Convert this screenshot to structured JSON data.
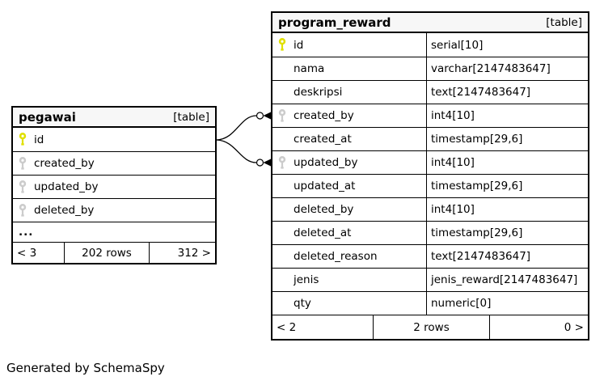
{
  "credit": "Generated by SchemaSpy",
  "colors": {
    "primary_key": "#e0e000",
    "foreign_key": "#cccccc",
    "border": "#000000",
    "header_bg": "#f7f7f7"
  },
  "tables": [
    {
      "name": "pegawai",
      "badge": "[table]",
      "columns": [
        {
          "name": "id",
          "key": "primary"
        },
        {
          "name": "created_by",
          "key": "foreign"
        },
        {
          "name": "updated_by",
          "key": "foreign"
        },
        {
          "name": "deleted_by",
          "key": "foreign"
        },
        {
          "name": "...",
          "key": "none"
        }
      ],
      "pager": {
        "prev": "< 3",
        "rows": "202 rows",
        "next": "312 >"
      }
    },
    {
      "name": "program_reward",
      "badge": "[table]",
      "columns": [
        {
          "name": "id",
          "type": "serial[10]",
          "key": "primary"
        },
        {
          "name": "nama",
          "type": "varchar[2147483647]",
          "key": "none"
        },
        {
          "name": "deskripsi",
          "type": "text[2147483647]",
          "key": "none"
        },
        {
          "name": "created_by",
          "type": "int4[10]",
          "key": "foreign"
        },
        {
          "name": "created_at",
          "type": "timestamp[29,6]",
          "key": "none"
        },
        {
          "name": "updated_by",
          "type": "int4[10]",
          "key": "foreign"
        },
        {
          "name": "updated_at",
          "type": "timestamp[29,6]",
          "key": "none"
        },
        {
          "name": "deleted_by",
          "type": "int4[10]",
          "key": "none"
        },
        {
          "name": "deleted_at",
          "type": "timestamp[29,6]",
          "key": "none"
        },
        {
          "name": "deleted_reason",
          "type": "text[2147483647]",
          "key": "none"
        },
        {
          "name": "jenis",
          "type": "jenis_reward[2147483647]",
          "key": "none"
        },
        {
          "name": "qty",
          "type": "numeric[0]",
          "key": "none"
        }
      ],
      "pager": {
        "prev": "< 2",
        "rows": "2 rows",
        "next": "0 >"
      }
    }
  ],
  "relationships": [
    {
      "from": "pegawai.id",
      "to": "program_reward.created_by"
    },
    {
      "from": "pegawai.id",
      "to": "program_reward.updated_by"
    }
  ]
}
